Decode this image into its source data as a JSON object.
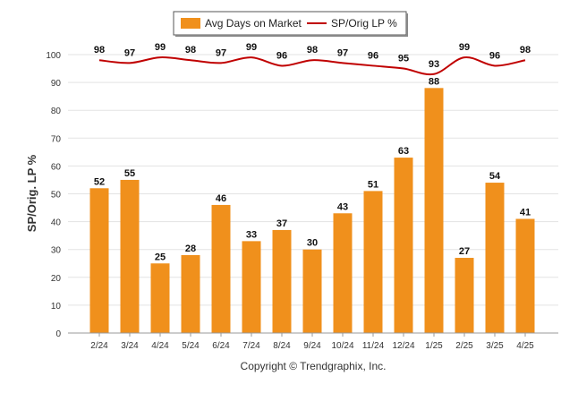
{
  "chart_data": {
    "type": "bar",
    "categories": [
      "2/24",
      "3/24",
      "4/24",
      "5/24",
      "6/24",
      "7/24",
      "8/24",
      "9/24",
      "10/24",
      "11/24",
      "12/24",
      "1/25",
      "2/25",
      "3/25",
      "4/25"
    ],
    "series": [
      {
        "name": "Avg Days on Market",
        "type": "bar",
        "color": "#F0901C",
        "values": [
          52,
          55,
          25,
          28,
          46,
          33,
          37,
          30,
          43,
          51,
          63,
          88,
          27,
          54,
          41
        ]
      },
      {
        "name": "SP/Orig LP %",
        "type": "line",
        "color": "#C00000",
        "values": [
          98,
          97,
          99,
          98,
          97,
          99,
          96,
          98,
          97,
          96,
          95,
          93,
          99,
          96,
          98
        ]
      }
    ],
    "ylabel": "SP/Orig. LP %",
    "ylim": [
      0,
      100
    ],
    "yticks": [
      0,
      10,
      20,
      30,
      40,
      50,
      60,
      70,
      80,
      90,
      100
    ],
    "grid": true,
    "legend": "top-center"
  },
  "footer": {
    "copyright": "Copyright © Trendgraphix, Inc."
  }
}
